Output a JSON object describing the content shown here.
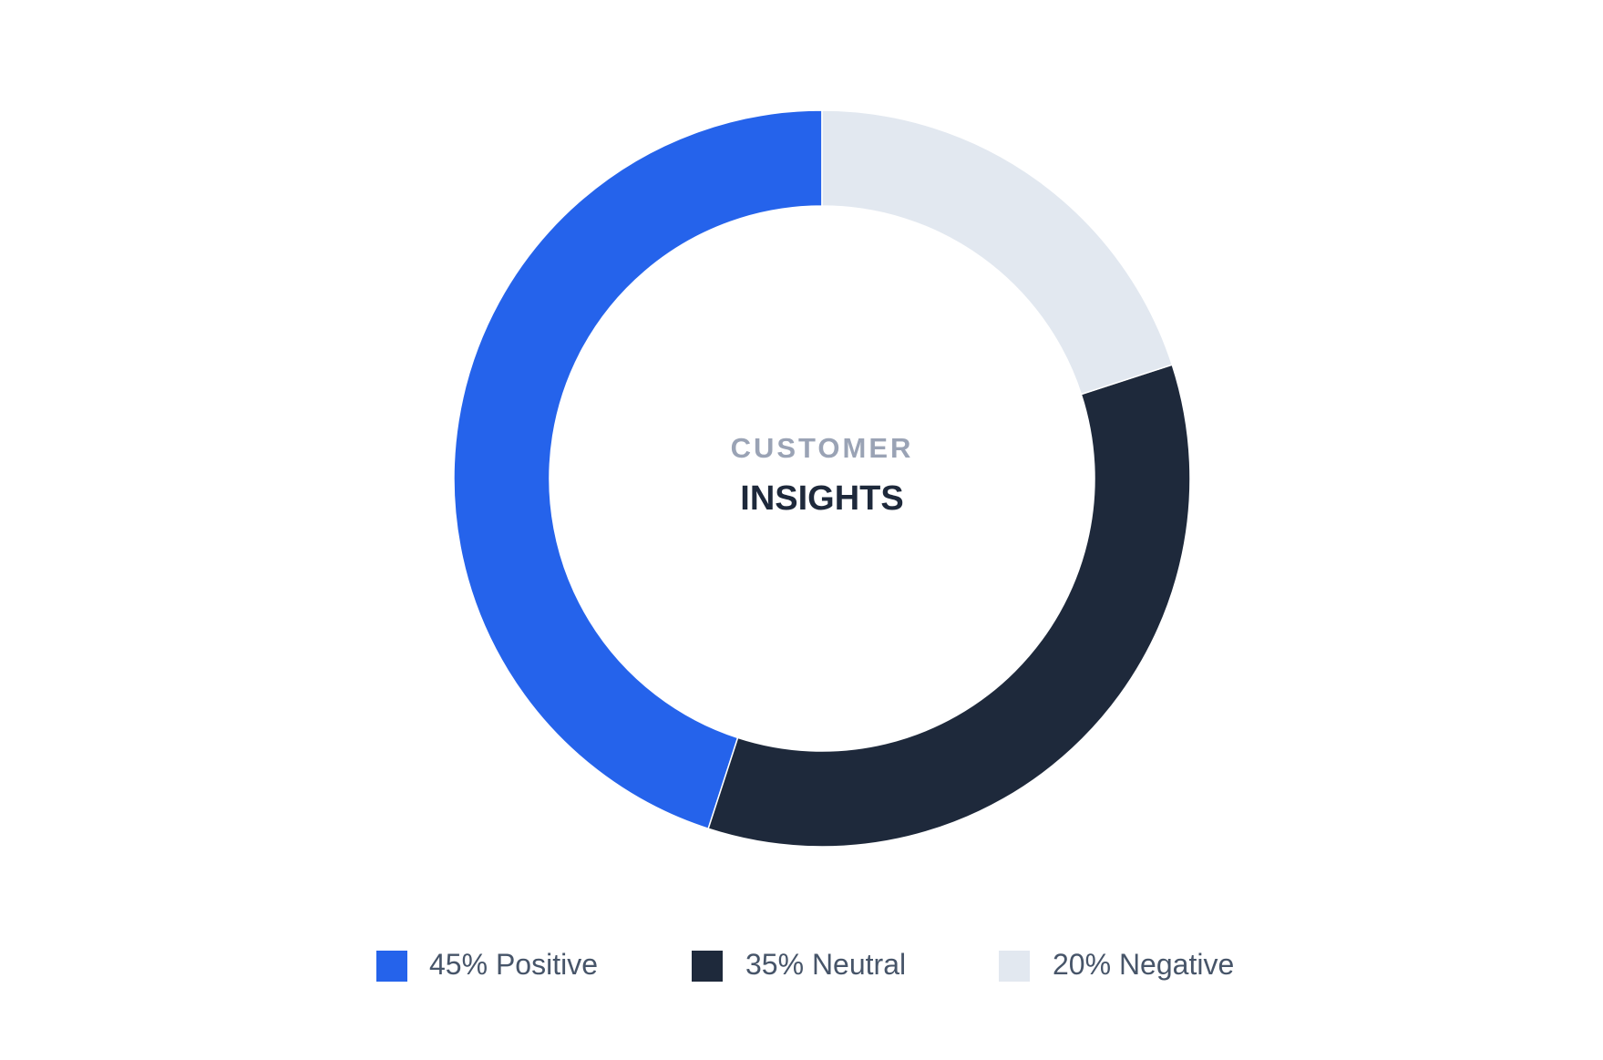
{
  "chart_data": {
    "type": "pie",
    "center_text": [
      "CUSTOMER",
      "INSIGHTS"
    ],
    "categories": [
      "Positive",
      "Neutral",
      "Negative"
    ],
    "values": [
      45,
      35,
      20
    ],
    "value_labels": [
      "45%",
      "35%",
      "20%"
    ],
    "colors": [
      "#2563eb",
      "#1e293b",
      "#e2e8f0"
    ]
  }
}
